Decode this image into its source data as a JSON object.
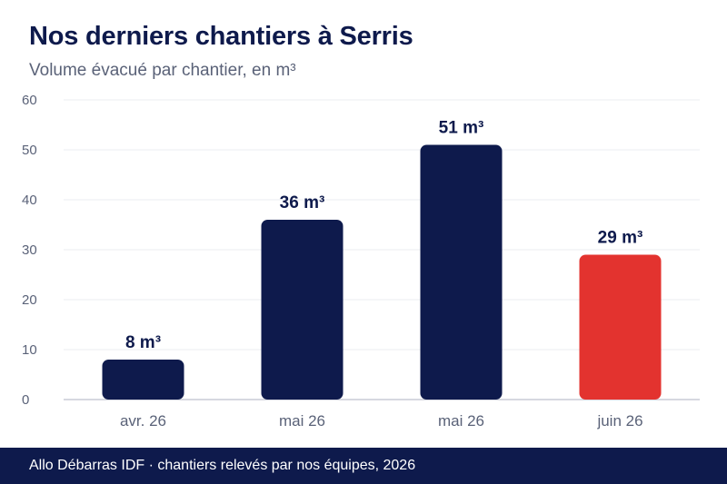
{
  "header": {
    "title": "Nos derniers chantiers à Serris",
    "subtitle": "Volume évacué par chantier, en m³"
  },
  "footer": {
    "source": "Allo Débarras IDF · chantiers relevés par nos équipes, 2026"
  },
  "colors": {
    "primary": "#0e1a4c",
    "highlight": "#e3332f",
    "grid": "#ebedf2",
    "axis_text": "#5a6278"
  },
  "chart_data": {
    "type": "bar",
    "title": "Nos derniers chantiers à Serris",
    "subtitle": "Volume évacué par chantier, en m³",
    "categories": [
      "avr. 26",
      "mai 26",
      "mai 26",
      "juin 26"
    ],
    "values": [
      8,
      36,
      51,
      29
    ],
    "data_labels": [
      "8 m³",
      "36 m³",
      "51 m³",
      "29 m³"
    ],
    "highlight_index": 3,
    "ylim": [
      0,
      60
    ],
    "yticks": [
      0,
      10,
      20,
      30,
      40,
      50,
      60
    ],
    "grid": true,
    "xlabel": "",
    "ylabel": ""
  }
}
